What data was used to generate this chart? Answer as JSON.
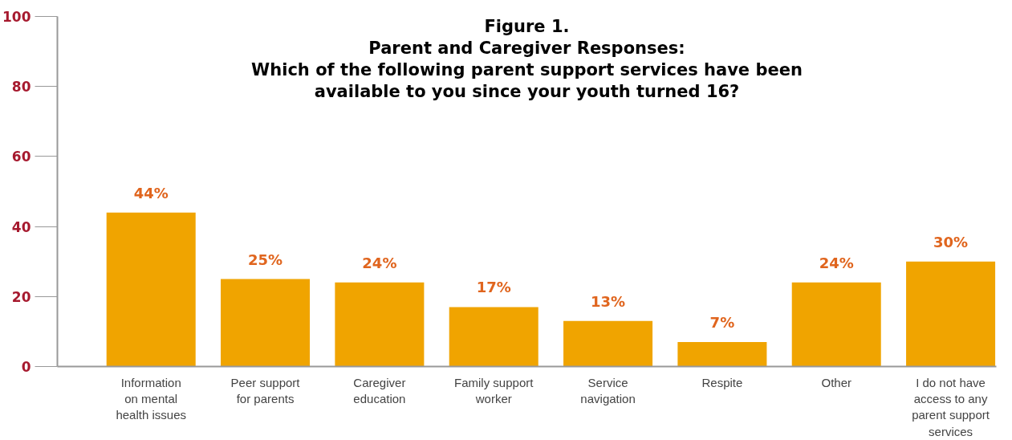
{
  "chart_data": {
    "type": "bar",
    "title": "Figure 1.\nParent and Caregiver Responses:\nWhich of the following parent support services have been\navailable to you since your youth turned 16?",
    "categories": [
      "Information\non mental\nhealth issues",
      "Peer support\nfor parents",
      "Caregiver\neducation",
      "Family support\nworker",
      "Service\nnavigation",
      "Respite",
      "Other",
      "I do not have\naccess to any\nparent support\nservices"
    ],
    "values": [
      44,
      25,
      24,
      17,
      13,
      7,
      24,
      30
    ],
    "value_labels": [
      "44%",
      "25%",
      "24%",
      "17%",
      "13%",
      "7%",
      "24%",
      "30%"
    ],
    "color": "#f0a400",
    "ylim": [
      0,
      100
    ],
    "yticks": [
      0,
      20,
      40,
      60,
      80,
      100
    ],
    "grid": false
  }
}
